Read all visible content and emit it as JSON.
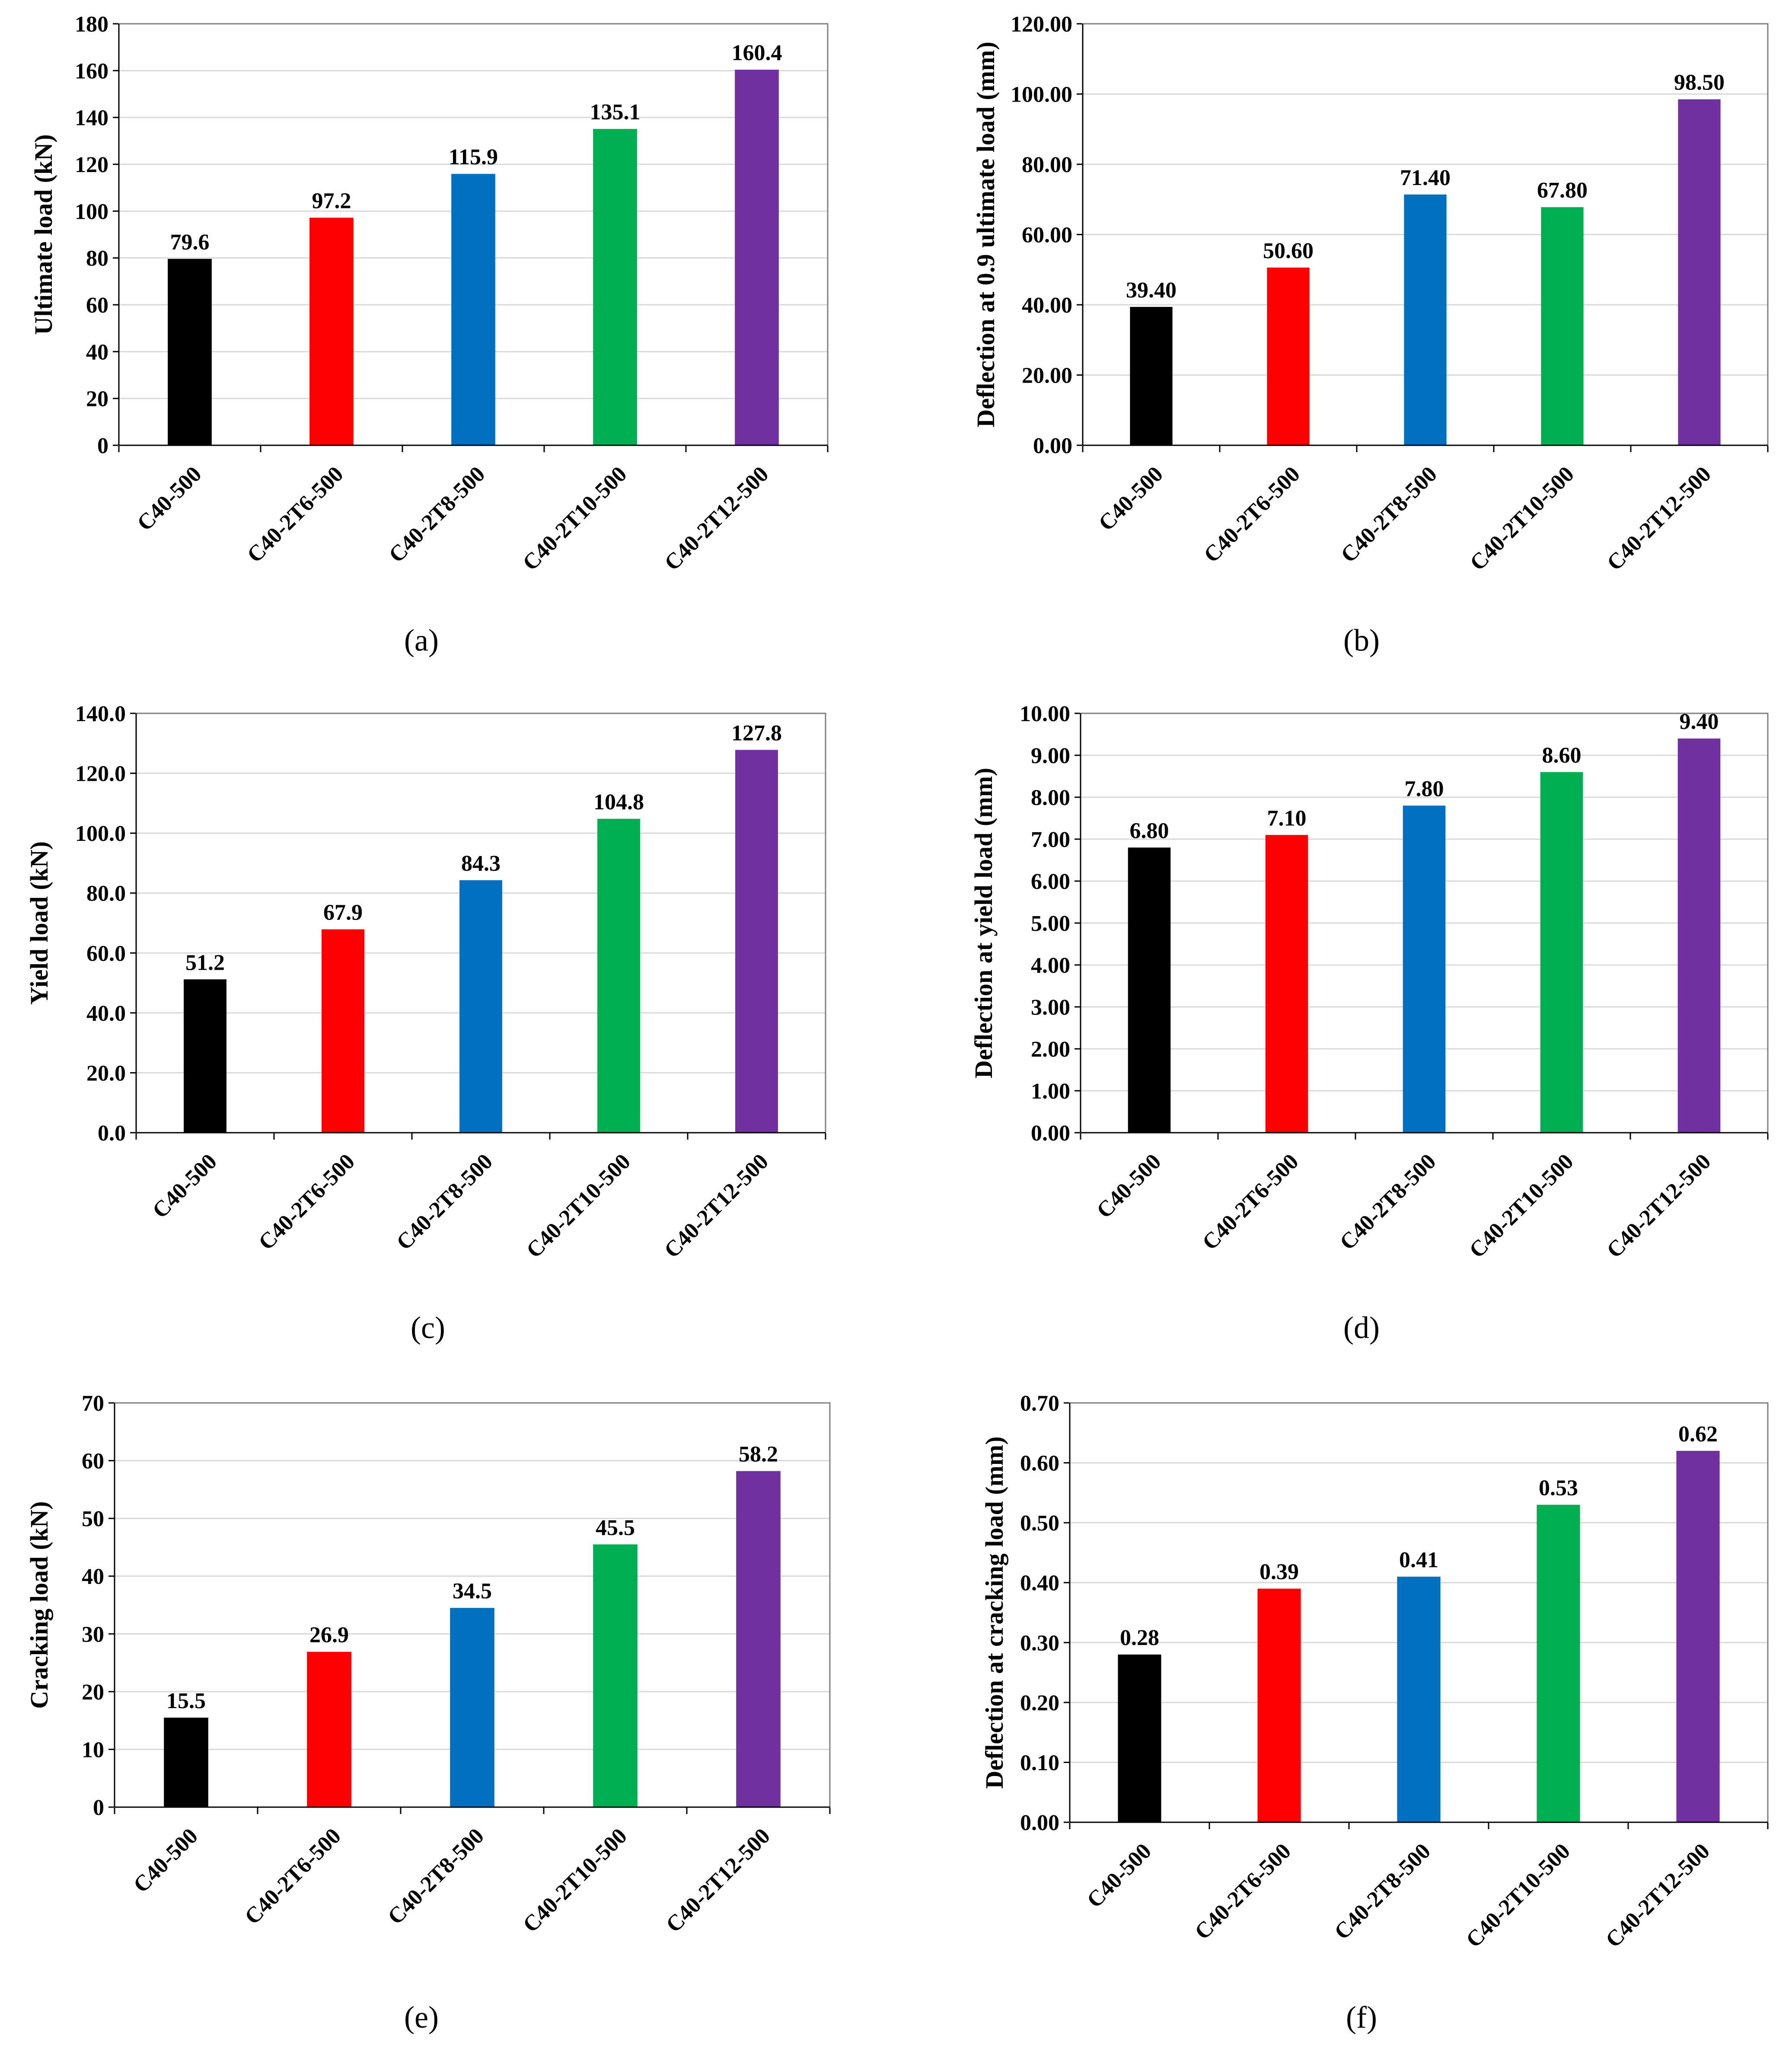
{
  "chart_data": [
    {
      "panel": "(a)",
      "type": "bar",
      "categories": [
        "C40-500",
        "C40-2T6-500",
        "C40-2T8-500",
        "C40-2T10-500",
        "C40-2T12-500"
      ],
      "values": [
        79.6,
        97.2,
        115.9,
        135.1,
        160.4
      ],
      "value_labels": [
        "79.6",
        "97.2",
        "115.9",
        "135.1",
        "160.4"
      ],
      "colors": [
        "#000000",
        "#ff0000",
        "#0070c0",
        "#00b050",
        "#7030a0"
      ],
      "ylabel": "Ultimate load (kN)",
      "ylim": [
        0,
        180
      ],
      "yticks": [
        "0",
        "20",
        "40",
        "60",
        "80",
        "100",
        "120",
        "140",
        "160",
        "180"
      ],
      "grid": true
    },
    {
      "panel": "(b)",
      "type": "bar",
      "categories": [
        "C40-500",
        "C40-2T6-500",
        "C40-2T8-500",
        "C40-2T10-500",
        "C40-2T12-500"
      ],
      "values": [
        39.4,
        50.6,
        71.4,
        67.8,
        98.5
      ],
      "value_labels": [
        "39.40",
        "50.60",
        "71.40",
        "67.80",
        "98.50"
      ],
      "colors": [
        "#000000",
        "#ff0000",
        "#0070c0",
        "#00b050",
        "#7030a0"
      ],
      "ylabel": "Deflection at 0.9 ultimate load (mm)",
      "ylim": [
        0,
        120
      ],
      "yticks": [
        "0.00",
        "20.00",
        "40.00",
        "60.00",
        "80.00",
        "100.00",
        "120.00"
      ],
      "grid": true
    },
    {
      "panel": "(c)",
      "type": "bar",
      "categories": [
        "C40-500",
        "C40-2T6-500",
        "C40-2T8-500",
        "C40-2T10-500",
        "C40-2T12-500"
      ],
      "values": [
        51.2,
        67.9,
        84.3,
        104.8,
        127.8
      ],
      "value_labels": [
        "51.2",
        "67.9",
        "84.3",
        "104.8",
        "127.8"
      ],
      "colors": [
        "#000000",
        "#ff0000",
        "#0070c0",
        "#00b050",
        "#7030a0"
      ],
      "ylabel": "Yield load (kN)",
      "ylim": [
        0,
        140
      ],
      "yticks": [
        "0.0",
        "20.0",
        "40.0",
        "60.0",
        "80.0",
        "100.0",
        "120.0",
        "140.0"
      ],
      "grid": true
    },
    {
      "panel": "(d)",
      "type": "bar",
      "categories": [
        "C40-500",
        "C40-2T6-500",
        "C40-2T8-500",
        "C40-2T10-500",
        "C40-2T12-500"
      ],
      "values": [
        6.8,
        7.1,
        7.8,
        8.6,
        9.4
      ],
      "value_labels": [
        "6.80",
        "7.10",
        "7.80",
        "8.60",
        "9.40"
      ],
      "colors": [
        "#000000",
        "#ff0000",
        "#0070c0",
        "#00b050",
        "#7030a0"
      ],
      "ylabel": "Deflection at yield load (mm)",
      "ylim": [
        0,
        10
      ],
      "yticks": [
        "0.00",
        "1.00",
        "2.00",
        "3.00",
        "4.00",
        "5.00",
        "6.00",
        "7.00",
        "8.00",
        "9.00",
        "10.00"
      ],
      "grid": true
    },
    {
      "panel": "(e)",
      "type": "bar",
      "categories": [
        "C40-500",
        "C40-2T6-500",
        "C40-2T8-500",
        "C40-2T10-500",
        "C40-2T12-500"
      ],
      "values": [
        15.5,
        26.9,
        34.5,
        45.5,
        58.2
      ],
      "value_labels": [
        "15.5",
        "26.9",
        "34.5",
        "45.5",
        "58.2"
      ],
      "colors": [
        "#000000",
        "#ff0000",
        "#0070c0",
        "#00b050",
        "#7030a0"
      ],
      "ylabel": "Cracking load (kN)",
      "ylim": [
        0,
        70
      ],
      "yticks": [
        "0",
        "10",
        "20",
        "30",
        "40",
        "50",
        "60",
        "70"
      ],
      "grid": true
    },
    {
      "panel": "(f)",
      "type": "bar",
      "categories": [
        "C40-500",
        "C40-2T6-500",
        "C40-2T8-500",
        "C40-2T10-500",
        "C40-2T12-500"
      ],
      "values": [
        0.28,
        0.39,
        0.41,
        0.53,
        0.62
      ],
      "value_labels": [
        "0.28",
        "0.39",
        "0.41",
        "0.53",
        "0.62"
      ],
      "colors": [
        "#000000",
        "#ff0000",
        "#0070c0",
        "#00b050",
        "#7030a0"
      ],
      "ylabel": "Deflection at cracking load (mm)",
      "ylim": [
        0,
        0.7
      ],
      "yticks": [
        "0.00",
        "0.10",
        "0.20",
        "0.30",
        "0.40",
        "0.50",
        "0.60",
        "0.70"
      ],
      "grid": true
    }
  ]
}
